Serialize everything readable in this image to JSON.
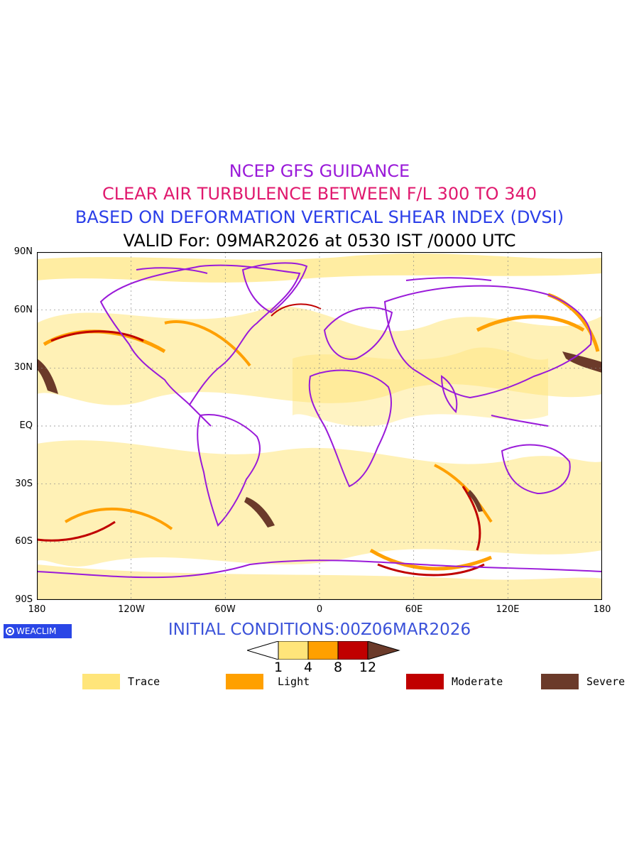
{
  "titles": {
    "line1": "NCEP GFS GUIDANCE",
    "line2": "CLEAR AIR TURBULENCE BETWEEN F/L 300 TO 340",
    "line3": "BASED ON DEFORMATION VERTICAL SHEAR INDEX (DVSI)",
    "line4": "VALID For: 09MAR2026 at 0530 IST /0000 UTC"
  },
  "map": {
    "lat_labels": [
      "90N",
      "60N",
      "30N",
      "EQ",
      "30S",
      "60S",
      "90S"
    ],
    "lon_labels": [
      "180",
      "120W",
      "60W",
      "0",
      "60E",
      "120E",
      "180"
    ],
    "colors": {
      "trace": "#ffe57a",
      "light": "#ffa000",
      "moderate": "#c00000",
      "severe": "#6b3a2a",
      "coast": "#9a1ad9",
      "background": "#ffffff"
    }
  },
  "footer": {
    "brand": "WEACLIM",
    "brand_icon": "weaclim-logo-icon",
    "initial_conditions": "INITIAL CONDITIONS:00Z06MAR2026"
  },
  "colorbar": {
    "ticks": [
      "1",
      "4",
      "8",
      "12"
    ]
  },
  "legend": [
    {
      "label": "Trace",
      "color": "#ffe57a"
    },
    {
      "label": "Light",
      "color": "#ffa000"
    },
    {
      "label": "Moderate",
      "color": "#c00000"
    },
    {
      "label": "Severe",
      "color": "#6b3a2a"
    }
  ]
}
